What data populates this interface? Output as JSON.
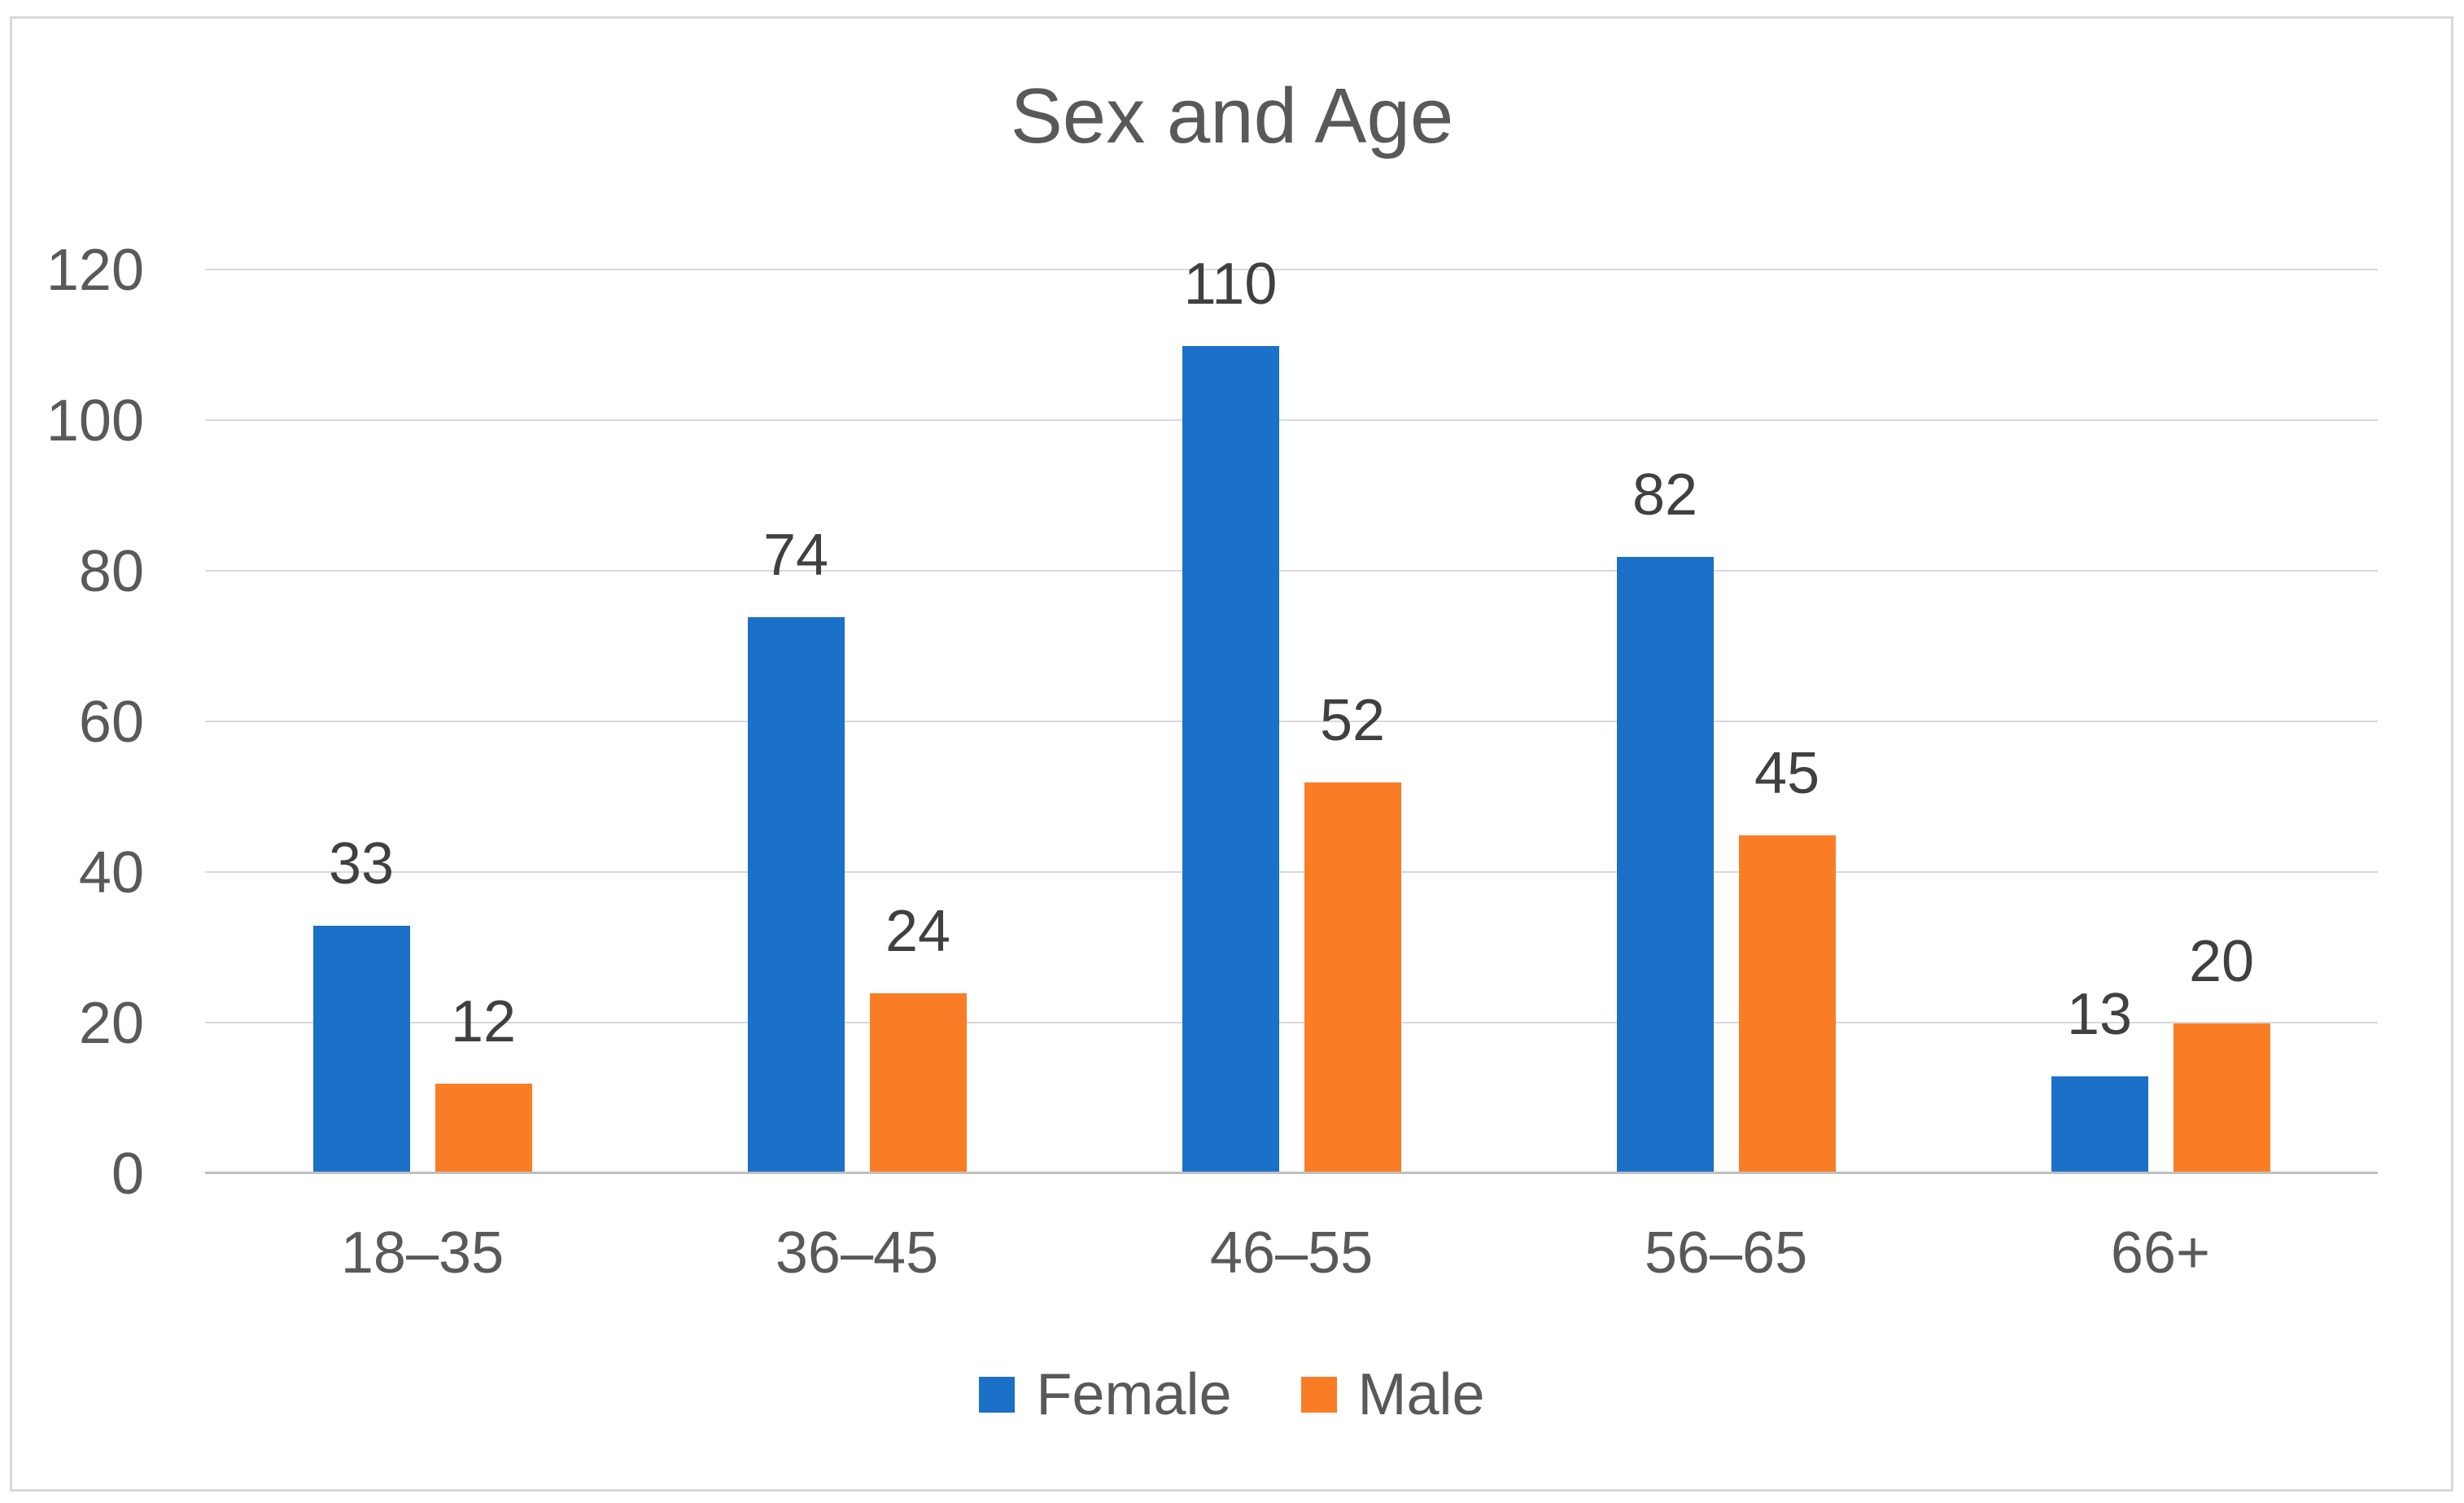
{
  "chart_data": {
    "type": "bar",
    "title": "Sex and Age",
    "categories": [
      "18–35",
      "36–45",
      "46–55",
      "56–65",
      "66+"
    ],
    "series": [
      {
        "name": "Female",
        "color": "#1B70C8",
        "values": [
          33,
          74,
          110,
          82,
          13
        ]
      },
      {
        "name": "Male",
        "color": "#FA7D26",
        "values": [
          12,
          24,
          52,
          45,
          20
        ]
      }
    ],
    "ylim": [
      0,
      120
    ],
    "ytick_step": 20,
    "yticks": [
      "0",
      "20",
      "40",
      "60",
      "80",
      "100",
      "120"
    ],
    "xlabel": "",
    "ylabel": "",
    "grid": true,
    "legend_position": "bottom",
    "data_labels": true
  }
}
